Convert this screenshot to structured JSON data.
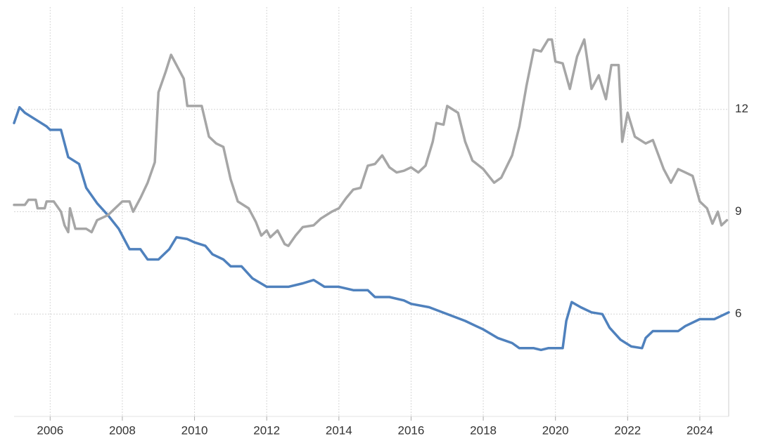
{
  "chart_data": {
    "type": "line",
    "xlim": [
      2005,
      2024.8
    ],
    "xticks": [
      2006,
      2008,
      2010,
      2012,
      2014,
      2016,
      2018,
      2020,
      2022,
      2024
    ],
    "ylim": [
      3,
      15
    ],
    "yticks": [
      6,
      9,
      12
    ],
    "grid": true,
    "series": [
      {
        "color": "#4f81bd",
        "x": [
          2005.0,
          2005.15,
          2005.3,
          2005.6,
          2005.9,
          2006.0,
          2006.3,
          2006.5,
          2006.8,
          2007.0,
          2007.3,
          2007.6,
          2007.9,
          2008.2,
          2008.5,
          2008.7,
          2009.0,
          2009.3,
          2009.5,
          2009.8,
          2010.0,
          2010.3,
          2010.5,
          2010.8,
          2011.0,
          2011.3,
          2011.6,
          2012.0,
          2012.3,
          2012.6,
          2013.0,
          2013.3,
          2013.6,
          2014.0,
          2014.4,
          2014.8,
          2015.0,
          2015.4,
          2015.8,
          2016.0,
          2016.5,
          2017.0,
          2017.5,
          2017.8,
          2018.0,
          2018.4,
          2018.8,
          2019.0,
          2019.4,
          2019.6,
          2019.8,
          2020.2,
          2020.3,
          2020.45,
          2020.7,
          2021.0,
          2021.3,
          2021.5,
          2021.8,
          2022.1,
          2022.4,
          2022.5,
          2022.7,
          2023.0,
          2023.4,
          2023.6,
          2024.0,
          2024.4,
          2024.8
        ],
        "values": [
          11.6,
          12.06,
          11.9,
          11.7,
          11.5,
          11.4,
          11.4,
          10.6,
          10.4,
          9.7,
          9.25,
          8.9,
          8.5,
          7.9,
          7.9,
          7.6,
          7.6,
          7.9,
          8.25,
          8.2,
          8.1,
          8.0,
          7.75,
          7.6,
          7.4,
          7.4,
          7.05,
          6.8,
          6.8,
          6.8,
          6.9,
          7.0,
          6.8,
          6.8,
          6.7,
          6.7,
          6.5,
          6.5,
          6.4,
          6.3,
          6.2,
          6.0,
          5.8,
          5.65,
          5.55,
          5.3,
          5.15,
          5.0,
          5.0,
          4.95,
          5.0,
          5.0,
          5.8,
          6.35,
          6.2,
          6.05,
          6.0,
          5.6,
          5.25,
          5.05,
          5.0,
          5.3,
          5.5,
          5.5,
          5.5,
          5.65,
          5.85,
          5.85,
          6.05
        ]
      },
      {
        "color": "#a6a6a6",
        "x": [
          2005.0,
          2005.3,
          2005.4,
          2005.6,
          2005.65,
          2005.85,
          2005.9,
          2006.1,
          2006.3,
          2006.4,
          2006.5,
          2006.55,
          2006.7,
          2007.0,
          2007.15,
          2007.3,
          2007.6,
          2008.0,
          2008.2,
          2008.3,
          2008.5,
          2008.7,
          2008.9,
          2009.0,
          2009.2,
          2009.35,
          2009.5,
          2009.7,
          2009.8,
          2010.2,
          2010.4,
          2010.6,
          2010.8,
          2011.0,
          2011.2,
          2011.5,
          2011.7,
          2011.85,
          2012.0,
          2012.1,
          2012.3,
          2012.5,
          2012.6,
          2012.8,
          2013.0,
          2013.3,
          2013.5,
          2013.8,
          2014.0,
          2014.2,
          2014.4,
          2014.6,
          2014.8,
          2015.0,
          2015.2,
          2015.4,
          2015.6,
          2015.8,
          2016.0,
          2016.2,
          2016.4,
          2016.6,
          2016.7,
          2016.9,
          2017.0,
          2017.3,
          2017.5,
          2017.7,
          2018.0,
          2018.3,
          2018.5,
          2018.8,
          2019.0,
          2019.2,
          2019.4,
          2019.6,
          2019.8,
          2019.9,
          2020.0,
          2020.2,
          2020.4,
          2020.6,
          2020.8,
          2021.0,
          2021.2,
          2021.4,
          2021.55,
          2021.75,
          2021.85,
          2022.0,
          2022.2,
          2022.5,
          2022.7,
          2023.0,
          2023.2,
          2023.4,
          2023.6,
          2023.8,
          2024.0,
          2024.2,
          2024.35,
          2024.5,
          2024.6,
          2024.75
        ],
        "values": [
          9.2,
          9.2,
          9.35,
          9.35,
          9.1,
          9.1,
          9.3,
          9.3,
          9.0,
          8.6,
          8.4,
          9.1,
          8.5,
          8.5,
          8.4,
          8.75,
          8.9,
          9.3,
          9.3,
          9.0,
          9.4,
          9.85,
          10.45,
          12.5,
          13.1,
          13.6,
          13.3,
          12.9,
          12.1,
          12.1,
          11.2,
          11.0,
          10.9,
          9.95,
          9.3,
          9.1,
          8.7,
          8.3,
          8.45,
          8.25,
          8.45,
          8.05,
          8.0,
          8.3,
          8.55,
          8.6,
          8.8,
          9.0,
          9.1,
          9.4,
          9.65,
          9.7,
          10.35,
          10.4,
          10.65,
          10.3,
          10.15,
          10.2,
          10.3,
          10.15,
          10.35,
          11.05,
          11.6,
          11.55,
          12.1,
          11.9,
          11.05,
          10.5,
          10.25,
          9.85,
          10.0,
          10.65,
          11.5,
          12.7,
          13.75,
          13.7,
          14.05,
          14.05,
          13.4,
          13.35,
          12.6,
          13.55,
          14.05,
          12.6,
          13.0,
          12.3,
          13.3,
          13.3,
          11.05,
          11.9,
          11.2,
          11.0,
          11.1,
          10.25,
          9.85,
          10.25,
          10.15,
          10.05,
          9.3,
          9.1,
          8.65,
          9.0,
          8.6,
          8.75
        ]
      }
    ]
  }
}
